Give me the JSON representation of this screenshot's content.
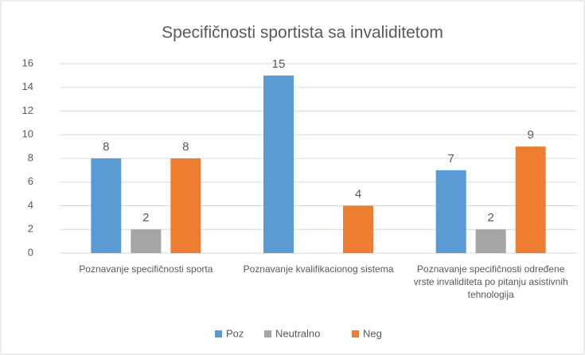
{
  "chart_data": {
    "type": "bar",
    "title": "Specifičnosti sportista sa invaliditetom",
    "categories": [
      "Poznavanje specifičnosti sporta",
      "Poznavanje kvalifikacionog sistema",
      "Poznavanje specifičnosti određene vrste invaliditeta po pitanju asistivnih tehnologija"
    ],
    "series": [
      {
        "name": "Poz",
        "color": "#5b9bd5",
        "values": [
          8,
          15,
          7
        ]
      },
      {
        "name": "Neutralno",
        "color": "#a5a5a5",
        "values": [
          2,
          null,
          2
        ]
      },
      {
        "name": "Neg",
        "color": "#ed7d31",
        "values": [
          8,
          4,
          9
        ]
      }
    ],
    "ylim": [
      0,
      16
    ],
    "yticks": [
      0,
      2,
      4,
      6,
      8,
      10,
      12,
      14,
      16
    ],
    "grid": true,
    "legend": "bottom"
  }
}
